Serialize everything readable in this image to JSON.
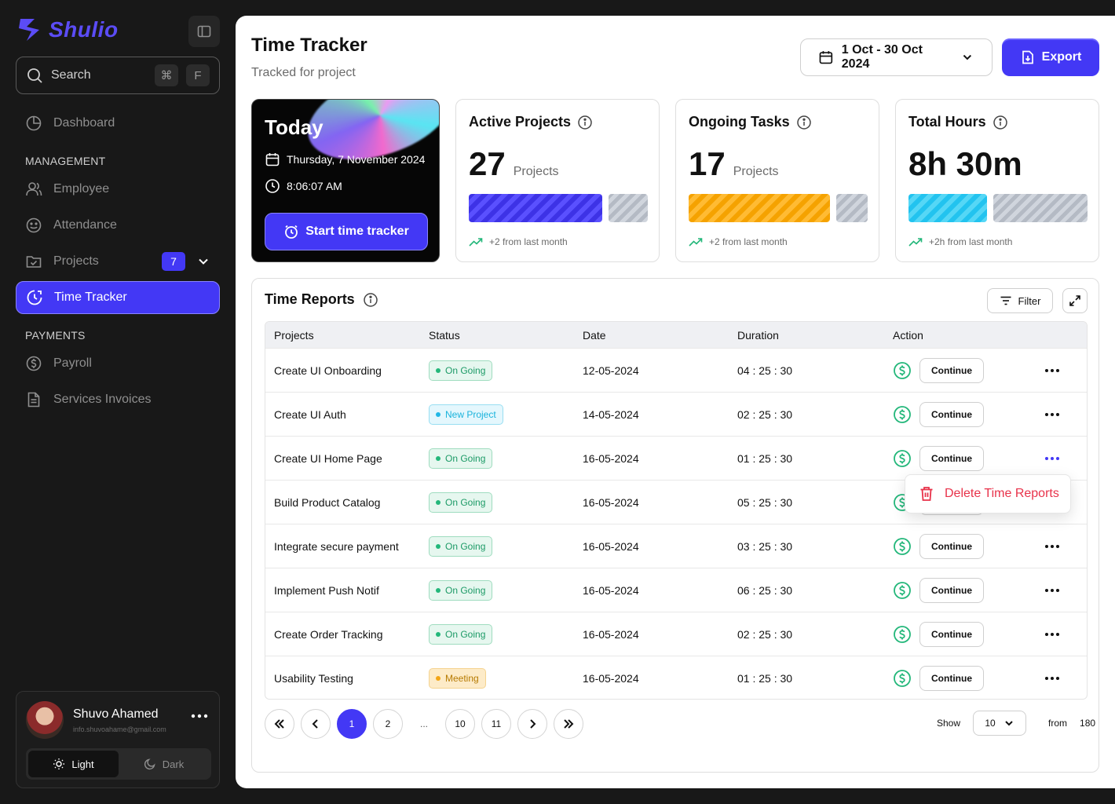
{
  "app": {
    "name": "Shulio"
  },
  "search": {
    "label": "Search",
    "kbd1": "⌘",
    "kbd2": "F"
  },
  "nav": {
    "dashboard": "Dashboard",
    "management_label": "MANAGEMENT",
    "employee": "Employee",
    "attendance": "Attendance",
    "projects": "Projects",
    "projects_badge": "7",
    "time_tracker": "Time Tracker",
    "payments_label": "PAYMENTS",
    "payroll": "Payroll",
    "services_invoices": "Services Invoices"
  },
  "profile": {
    "name": "Shuvo Ahamed",
    "email": "info.shuvoahame@gmail.com",
    "light": "Light",
    "dark": "Dark"
  },
  "header": {
    "title": "Time Tracker",
    "subtitle": "Tracked for project",
    "date_range": "1 Oct - 30 Oct 2024",
    "export": "Export"
  },
  "today": {
    "title": "Today",
    "date": "Thursday, 7 November 2024",
    "time": "8:06:07 AM",
    "start": "Start time tracker"
  },
  "stats": [
    {
      "title": "Active Projects",
      "value": "27",
      "unit": "Projects",
      "trend": "+2 from last month"
    },
    {
      "title": "Ongoing Tasks",
      "value": "17",
      "unit": "Projects",
      "trend": "+2 from last month"
    },
    {
      "title": "Total Hours",
      "value": "8h 30m",
      "unit": "",
      "trend": "+2h from last month"
    }
  ],
  "reports": {
    "title": "Time Reports",
    "filter": "Filter",
    "columns": [
      "Projects",
      "Status",
      "Date",
      "Duration",
      "Action"
    ],
    "rows": [
      {
        "project": "Create UI Onboarding",
        "status": "On Going",
        "date": "12-05-2024",
        "duration": "04 : 25 : 30",
        "action": "Continue"
      },
      {
        "project": "Create UI Auth",
        "status": "New Project",
        "date": "14-05-2024",
        "duration": "02 : 25 : 30",
        "action": "Continue"
      },
      {
        "project": "Create UI Home Page",
        "status": "On Going",
        "date": "16-05-2024",
        "duration": "01 : 25 : 30",
        "action": "Continue"
      },
      {
        "project": "Build Product Catalog",
        "status": "On Going",
        "date": "16-05-2024",
        "duration": "05 : 25 : 30",
        "action": "Continue"
      },
      {
        "project": "Integrate secure payment",
        "status": "On Going",
        "date": "16-05-2024",
        "duration": "03 : 25 : 30",
        "action": "Continue"
      },
      {
        "project": "Implement Push Notif",
        "status": "On Going",
        "date": "16-05-2024",
        "duration": "06 : 25 : 30",
        "action": "Continue"
      },
      {
        "project": "Create Order Tracking",
        "status": "On Going",
        "date": "16-05-2024",
        "duration": "02 : 25 : 30",
        "action": "Continue"
      },
      {
        "project": "Usability Testing",
        "status": "Meeting",
        "date": "16-05-2024",
        "duration": "01 : 25 : 30",
        "action": "Continue"
      }
    ],
    "context_menu": "Delete Time Reports"
  },
  "pagination": {
    "pages": [
      "1",
      "2",
      "...",
      "10",
      "11"
    ],
    "current": "1",
    "show_label": "Show",
    "page_size": "10",
    "from_label": "from",
    "total": "180"
  },
  "colors": {
    "accent": "#4338f5",
    "sidebar_bg": "#181818",
    "ongoing": "#23b77a",
    "new": "#22b7e6",
    "meeting": "#f3a516",
    "danger": "#e8324a"
  }
}
